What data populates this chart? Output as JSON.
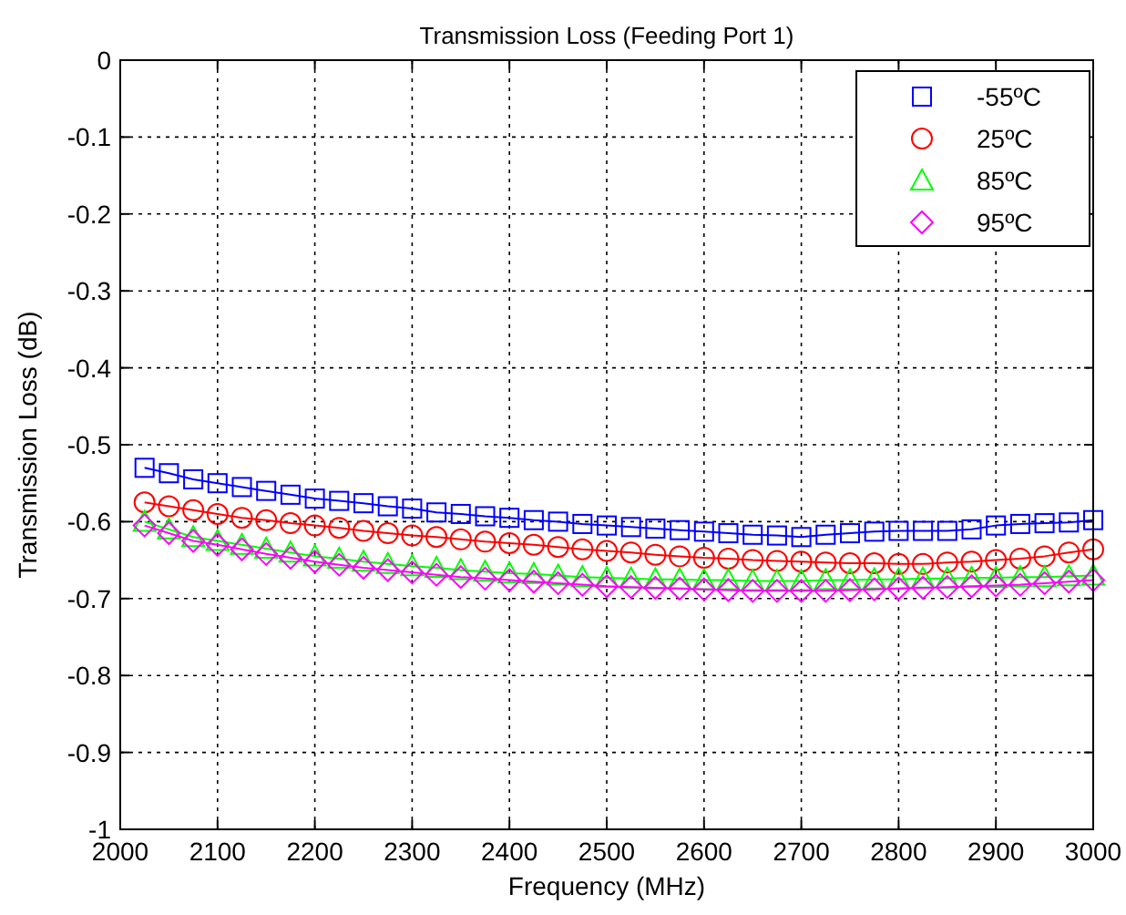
{
  "chart_data": {
    "type": "line",
    "title": "Transmission Loss (Feeding Port 1)",
    "xlabel": "Frequency (MHz)",
    "ylabel": "Transmission Loss (dB)",
    "x": [
      2025,
      2050,
      2075,
      2100,
      2125,
      2150,
      2175,
      2200,
      2225,
      2250,
      2275,
      2300,
      2325,
      2350,
      2375,
      2400,
      2425,
      2450,
      2475,
      2500,
      2525,
      2550,
      2575,
      2600,
      2625,
      2650,
      2675,
      2700,
      2725,
      2750,
      2775,
      2800,
      2825,
      2850,
      2875,
      2900,
      2925,
      2950,
      2975,
      3000
    ],
    "xlim": [
      2000,
      3000
    ],
    "xticks": [
      2000,
      2100,
      2200,
      2300,
      2400,
      2500,
      2600,
      2700,
      2800,
      2900,
      3000
    ],
    "ylim": [
      -1,
      0
    ],
    "yticks": [
      -1,
      -0.9,
      -0.8,
      -0.7,
      -0.6,
      -0.5,
      -0.4,
      -0.3,
      -0.2,
      -0.1,
      0
    ],
    "grid": true,
    "legend": "top right",
    "line_style": "solid",
    "series": [
      {
        "name": "-55ºC",
        "color": "#0000ff",
        "marker": "square",
        "values": [
          -0.53,
          -0.537,
          -0.545,
          -0.55,
          -0.555,
          -0.56,
          -0.565,
          -0.57,
          -0.573,
          -0.576,
          -0.58,
          -0.583,
          -0.588,
          -0.59,
          -0.593,
          -0.595,
          -0.598,
          -0.6,
          -0.603,
          -0.605,
          -0.607,
          -0.609,
          -0.611,
          -0.613,
          -0.615,
          -0.617,
          -0.618,
          -0.62,
          -0.617,
          -0.615,
          -0.613,
          -0.612,
          -0.612,
          -0.612,
          -0.61,
          -0.605,
          -0.603,
          -0.602,
          -0.601,
          -0.598
        ]
      },
      {
        "name": "25ºC",
        "color": "#ff0000",
        "marker": "circle",
        "values": [
          -0.575,
          -0.58,
          -0.585,
          -0.59,
          -0.595,
          -0.598,
          -0.602,
          -0.605,
          -0.608,
          -0.612,
          -0.615,
          -0.618,
          -0.62,
          -0.623,
          -0.626,
          -0.628,
          -0.63,
          -0.633,
          -0.636,
          -0.638,
          -0.64,
          -0.643,
          -0.645,
          -0.647,
          -0.648,
          -0.65,
          -0.651,
          -0.652,
          -0.653,
          -0.654,
          -0.654,
          -0.655,
          -0.655,
          -0.653,
          -0.652,
          -0.65,
          -0.648,
          -0.645,
          -0.64,
          -0.636
        ]
      },
      {
        "name": "85ºC",
        "color": "#00ff00",
        "marker": "triangle",
        "values": [
          -0.6,
          -0.61,
          -0.62,
          -0.625,
          -0.63,
          -0.635,
          -0.64,
          -0.645,
          -0.648,
          -0.652,
          -0.655,
          -0.658,
          -0.66,
          -0.663,
          -0.665,
          -0.667,
          -0.668,
          -0.67,
          -0.672,
          -0.673,
          -0.674,
          -0.675,
          -0.675,
          -0.676,
          -0.676,
          -0.677,
          -0.677,
          -0.677,
          -0.676,
          -0.676,
          -0.675,
          -0.675,
          -0.674,
          -0.674,
          -0.673,
          -0.673,
          -0.672,
          -0.672,
          -0.671,
          -0.67
        ]
      },
      {
        "name": "95ºC",
        "color": "#ff00ff",
        "marker": "diamond",
        "values": [
          -0.605,
          -0.615,
          -0.625,
          -0.63,
          -0.636,
          -0.642,
          -0.647,
          -0.652,
          -0.656,
          -0.66,
          -0.663,
          -0.666,
          -0.669,
          -0.672,
          -0.674,
          -0.676,
          -0.678,
          -0.68,
          -0.682,
          -0.684,
          -0.685,
          -0.686,
          -0.687,
          -0.688,
          -0.689,
          -0.69,
          -0.69,
          -0.69,
          -0.69,
          -0.689,
          -0.688,
          -0.687,
          -0.686,
          -0.685,
          -0.684,
          -0.683,
          -0.682,
          -0.68,
          -0.678,
          -0.676
        ]
      }
    ]
  }
}
